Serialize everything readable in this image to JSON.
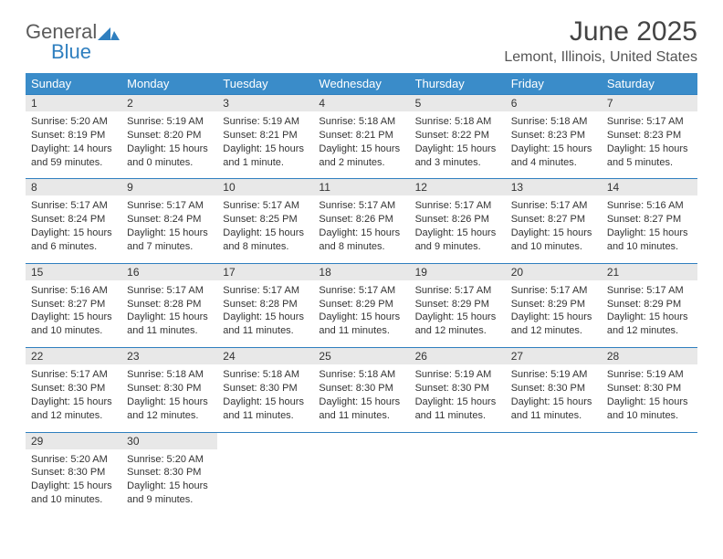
{
  "logo": {
    "word1": "General",
    "word2": "Blue",
    "text_color1": "#5b5b5b",
    "text_color2": "#2f7fbf",
    "mark_color": "#2f7fbf"
  },
  "title": "June 2025",
  "location": "Lemont, Illinois, United States",
  "colors": {
    "header_bg": "#3a8cc9",
    "header_text": "#ffffff",
    "daynum_bg": "#e8e8e8",
    "rule": "#2f7fbf",
    "body_text": "#333333"
  },
  "weekdays": [
    "Sunday",
    "Monday",
    "Tuesday",
    "Wednesday",
    "Thursday",
    "Friday",
    "Saturday"
  ],
  "weeks": [
    [
      {
        "n": "1",
        "sr": "Sunrise: 5:20 AM",
        "ss": "Sunset: 8:19 PM",
        "d1": "Daylight: 14 hours",
        "d2": "and 59 minutes."
      },
      {
        "n": "2",
        "sr": "Sunrise: 5:19 AM",
        "ss": "Sunset: 8:20 PM",
        "d1": "Daylight: 15 hours",
        "d2": "and 0 minutes."
      },
      {
        "n": "3",
        "sr": "Sunrise: 5:19 AM",
        "ss": "Sunset: 8:21 PM",
        "d1": "Daylight: 15 hours",
        "d2": "and 1 minute."
      },
      {
        "n": "4",
        "sr": "Sunrise: 5:18 AM",
        "ss": "Sunset: 8:21 PM",
        "d1": "Daylight: 15 hours",
        "d2": "and 2 minutes."
      },
      {
        "n": "5",
        "sr": "Sunrise: 5:18 AM",
        "ss": "Sunset: 8:22 PM",
        "d1": "Daylight: 15 hours",
        "d2": "and 3 minutes."
      },
      {
        "n": "6",
        "sr": "Sunrise: 5:18 AM",
        "ss": "Sunset: 8:23 PM",
        "d1": "Daylight: 15 hours",
        "d2": "and 4 minutes."
      },
      {
        "n": "7",
        "sr": "Sunrise: 5:17 AM",
        "ss": "Sunset: 8:23 PM",
        "d1": "Daylight: 15 hours",
        "d2": "and 5 minutes."
      }
    ],
    [
      {
        "n": "8",
        "sr": "Sunrise: 5:17 AM",
        "ss": "Sunset: 8:24 PM",
        "d1": "Daylight: 15 hours",
        "d2": "and 6 minutes."
      },
      {
        "n": "9",
        "sr": "Sunrise: 5:17 AM",
        "ss": "Sunset: 8:24 PM",
        "d1": "Daylight: 15 hours",
        "d2": "and 7 minutes."
      },
      {
        "n": "10",
        "sr": "Sunrise: 5:17 AM",
        "ss": "Sunset: 8:25 PM",
        "d1": "Daylight: 15 hours",
        "d2": "and 8 minutes."
      },
      {
        "n": "11",
        "sr": "Sunrise: 5:17 AM",
        "ss": "Sunset: 8:26 PM",
        "d1": "Daylight: 15 hours",
        "d2": "and 8 minutes."
      },
      {
        "n": "12",
        "sr": "Sunrise: 5:17 AM",
        "ss": "Sunset: 8:26 PM",
        "d1": "Daylight: 15 hours",
        "d2": "and 9 minutes."
      },
      {
        "n": "13",
        "sr": "Sunrise: 5:17 AM",
        "ss": "Sunset: 8:27 PM",
        "d1": "Daylight: 15 hours",
        "d2": "and 10 minutes."
      },
      {
        "n": "14",
        "sr": "Sunrise: 5:16 AM",
        "ss": "Sunset: 8:27 PM",
        "d1": "Daylight: 15 hours",
        "d2": "and 10 minutes."
      }
    ],
    [
      {
        "n": "15",
        "sr": "Sunrise: 5:16 AM",
        "ss": "Sunset: 8:27 PM",
        "d1": "Daylight: 15 hours",
        "d2": "and 10 minutes."
      },
      {
        "n": "16",
        "sr": "Sunrise: 5:17 AM",
        "ss": "Sunset: 8:28 PM",
        "d1": "Daylight: 15 hours",
        "d2": "and 11 minutes."
      },
      {
        "n": "17",
        "sr": "Sunrise: 5:17 AM",
        "ss": "Sunset: 8:28 PM",
        "d1": "Daylight: 15 hours",
        "d2": "and 11 minutes."
      },
      {
        "n": "18",
        "sr": "Sunrise: 5:17 AM",
        "ss": "Sunset: 8:29 PM",
        "d1": "Daylight: 15 hours",
        "d2": "and 11 minutes."
      },
      {
        "n": "19",
        "sr": "Sunrise: 5:17 AM",
        "ss": "Sunset: 8:29 PM",
        "d1": "Daylight: 15 hours",
        "d2": "and 12 minutes."
      },
      {
        "n": "20",
        "sr": "Sunrise: 5:17 AM",
        "ss": "Sunset: 8:29 PM",
        "d1": "Daylight: 15 hours",
        "d2": "and 12 minutes."
      },
      {
        "n": "21",
        "sr": "Sunrise: 5:17 AM",
        "ss": "Sunset: 8:29 PM",
        "d1": "Daylight: 15 hours",
        "d2": "and 12 minutes."
      }
    ],
    [
      {
        "n": "22",
        "sr": "Sunrise: 5:17 AM",
        "ss": "Sunset: 8:30 PM",
        "d1": "Daylight: 15 hours",
        "d2": "and 12 minutes."
      },
      {
        "n": "23",
        "sr": "Sunrise: 5:18 AM",
        "ss": "Sunset: 8:30 PM",
        "d1": "Daylight: 15 hours",
        "d2": "and 12 minutes."
      },
      {
        "n": "24",
        "sr": "Sunrise: 5:18 AM",
        "ss": "Sunset: 8:30 PM",
        "d1": "Daylight: 15 hours",
        "d2": "and 11 minutes."
      },
      {
        "n": "25",
        "sr": "Sunrise: 5:18 AM",
        "ss": "Sunset: 8:30 PM",
        "d1": "Daylight: 15 hours",
        "d2": "and 11 minutes."
      },
      {
        "n": "26",
        "sr": "Sunrise: 5:19 AM",
        "ss": "Sunset: 8:30 PM",
        "d1": "Daylight: 15 hours",
        "d2": "and 11 minutes."
      },
      {
        "n": "27",
        "sr": "Sunrise: 5:19 AM",
        "ss": "Sunset: 8:30 PM",
        "d1": "Daylight: 15 hours",
        "d2": "and 11 minutes."
      },
      {
        "n": "28",
        "sr": "Sunrise: 5:19 AM",
        "ss": "Sunset: 8:30 PM",
        "d1": "Daylight: 15 hours",
        "d2": "and 10 minutes."
      }
    ],
    [
      {
        "n": "29",
        "sr": "Sunrise: 5:20 AM",
        "ss": "Sunset: 8:30 PM",
        "d1": "Daylight: 15 hours",
        "d2": "and 10 minutes."
      },
      {
        "n": "30",
        "sr": "Sunrise: 5:20 AM",
        "ss": "Sunset: 8:30 PM",
        "d1": "Daylight: 15 hours",
        "d2": "and 9 minutes."
      },
      null,
      null,
      null,
      null,
      null
    ]
  ]
}
